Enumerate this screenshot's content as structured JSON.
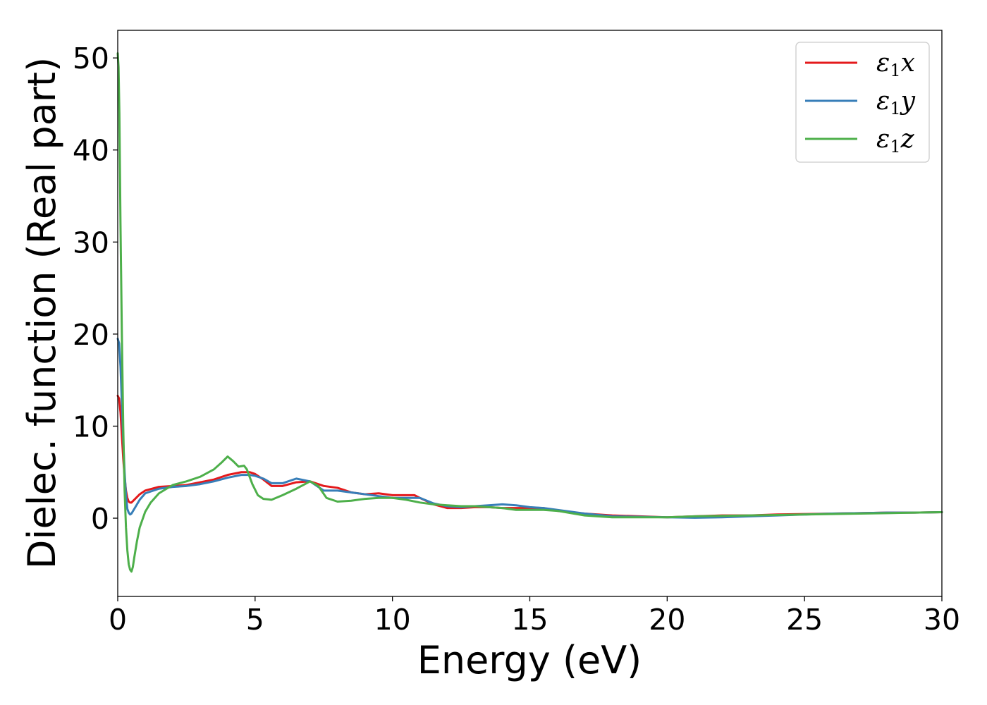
{
  "chart_data": {
    "type": "line",
    "xlabel": "Energy (eV)",
    "ylabel": "Dielec. function (Real part)",
    "xlim": [
      0,
      30
    ],
    "ylim": [
      -8.5,
      53
    ],
    "x_ticks": [
      "0",
      "5",
      "10",
      "15",
      "20",
      "25",
      "30"
    ],
    "y_ticks": [
      "0",
      "10",
      "20",
      "30",
      "40",
      "50"
    ],
    "grid": false,
    "legend_position": "top-right",
    "series": [
      {
        "name": "ε1x",
        "legend_main": "ε",
        "legend_sub": "1",
        "legend_suffix": "x",
        "color": "#e41a1c",
        "x": [
          0,
          0.05,
          0.1,
          0.15,
          0.2,
          0.25,
          0.3,
          0.35,
          0.4,
          0.45,
          0.5,
          0.6,
          0.8,
          1.0,
          1.5,
          2.0,
          2.5,
          3.0,
          3.5,
          4.0,
          4.5,
          4.8,
          5.0,
          5.3,
          5.6,
          6.0,
          6.5,
          7.0,
          7.5,
          8.0,
          8.5,
          9.0,
          9.5,
          10.0,
          10.5,
          10.8,
          11.0,
          11.5,
          12.0,
          12.5,
          13.0,
          13.5,
          14.0,
          14.5,
          15.0,
          15.5,
          16.0,
          17.0,
          18.0,
          19.0,
          20.0,
          21.0,
          22.0,
          23.0,
          24.0,
          25.0,
          26.0,
          27.0,
          28.0,
          29.0,
          30.0
        ],
        "y": [
          13.3,
          13.0,
          11.5,
          9.0,
          6.5,
          4.5,
          3.0,
          2.2,
          1.8,
          1.7,
          1.7,
          2.0,
          2.6,
          3.0,
          3.4,
          3.5,
          3.6,
          3.9,
          4.2,
          4.7,
          5.0,
          5.0,
          4.8,
          4.2,
          3.5,
          3.5,
          3.9,
          4.0,
          3.5,
          3.3,
          2.8,
          2.6,
          2.7,
          2.5,
          2.5,
          2.5,
          2.2,
          1.5,
          1.1,
          1.1,
          1.2,
          1.2,
          1.1,
          1.1,
          1.1,
          1.1,
          0.8,
          0.5,
          0.3,
          0.2,
          0.1,
          0.2,
          0.3,
          0.3,
          0.4,
          0.45,
          0.5,
          0.55,
          0.6,
          0.6,
          0.65
        ]
      },
      {
        "name": "ε1y",
        "legend_main": "ε",
        "legend_sub": "1",
        "legend_suffix": "y",
        "color": "#377eb8",
        "x": [
          0,
          0.05,
          0.1,
          0.15,
          0.2,
          0.25,
          0.3,
          0.35,
          0.4,
          0.45,
          0.5,
          0.6,
          0.8,
          1.0,
          1.5,
          2.0,
          2.5,
          3.0,
          3.5,
          4.0,
          4.5,
          4.8,
          5.0,
          5.3,
          5.6,
          6.0,
          6.5,
          7.0,
          7.5,
          8.0,
          8.5,
          9.0,
          9.5,
          10.0,
          10.5,
          11.0,
          11.5,
          12.0,
          12.5,
          13.0,
          13.5,
          14.0,
          14.5,
          15.0,
          15.5,
          16.0,
          17.0,
          18.0,
          19.0,
          20.0,
          21.0,
          22.0,
          23.0,
          24.0,
          25.0,
          26.0,
          27.0,
          28.0,
          29.0,
          30.0
        ],
        "y": [
          19.5,
          19.0,
          16.5,
          12.5,
          8.5,
          5.0,
          2.5,
          1.0,
          0.6,
          0.4,
          0.5,
          1.0,
          2.0,
          2.7,
          3.2,
          3.4,
          3.5,
          3.7,
          4.0,
          4.4,
          4.7,
          4.7,
          4.6,
          4.3,
          3.8,
          3.8,
          4.3,
          4.0,
          3.0,
          3.0,
          2.8,
          2.6,
          2.4,
          2.2,
          2.2,
          2.2,
          1.6,
          1.3,
          1.2,
          1.3,
          1.4,
          1.5,
          1.4,
          1.2,
          1.1,
          0.9,
          0.5,
          0.2,
          0.15,
          0.1,
          0.05,
          0.1,
          0.2,
          0.3,
          0.4,
          0.5,
          0.55,
          0.6,
          0.6,
          0.65
        ]
      },
      {
        "name": "ε1z",
        "legend_main": "ε",
        "legend_sub": "1",
        "legend_suffix": "z",
        "color": "#4daf4a",
        "x": [
          0,
          0.03,
          0.06,
          0.1,
          0.15,
          0.2,
          0.25,
          0.3,
          0.35,
          0.4,
          0.45,
          0.5,
          0.55,
          0.6,
          0.7,
          0.8,
          1.0,
          1.2,
          1.5,
          2.0,
          2.5,
          3.0,
          3.5,
          3.8,
          4.0,
          4.2,
          4.4,
          4.6,
          4.7,
          4.9,
          5.1,
          5.3,
          5.6,
          6.0,
          6.5,
          7.0,
          7.3,
          7.6,
          8.0,
          8.5,
          9.0,
          9.5,
          10.0,
          10.5,
          11.0,
          11.5,
          12.0,
          12.5,
          13.0,
          13.5,
          14.0,
          14.5,
          15.0,
          15.5,
          16.0,
          17.0,
          18.0,
          19.0,
          20.0,
          21.0,
          22.0,
          23.0,
          24.0,
          25.0,
          26.0,
          27.0,
          28.0,
          29.0,
          30.0
        ],
        "y": [
          50.5,
          49.0,
          44.0,
          32.0,
          20.0,
          10.0,
          3.0,
          -1.0,
          -3.5,
          -5.0,
          -5.6,
          -5.8,
          -5.3,
          -4.3,
          -2.5,
          -1.0,
          0.7,
          1.7,
          2.7,
          3.6,
          4.0,
          4.5,
          5.3,
          6.1,
          6.7,
          6.2,
          5.6,
          5.7,
          5.3,
          3.7,
          2.5,
          2.1,
          2.0,
          2.5,
          3.2,
          4.0,
          3.5,
          2.2,
          1.8,
          1.9,
          2.1,
          2.2,
          2.2,
          2.0,
          1.7,
          1.5,
          1.4,
          1.3,
          1.3,
          1.2,
          1.1,
          0.9,
          0.9,
          0.9,
          0.8,
          0.3,
          0.1,
          0.1,
          0.1,
          0.2,
          0.25,
          0.3,
          0.35,
          0.4,
          0.45,
          0.5,
          0.55,
          0.6,
          0.65
        ]
      }
    ]
  }
}
